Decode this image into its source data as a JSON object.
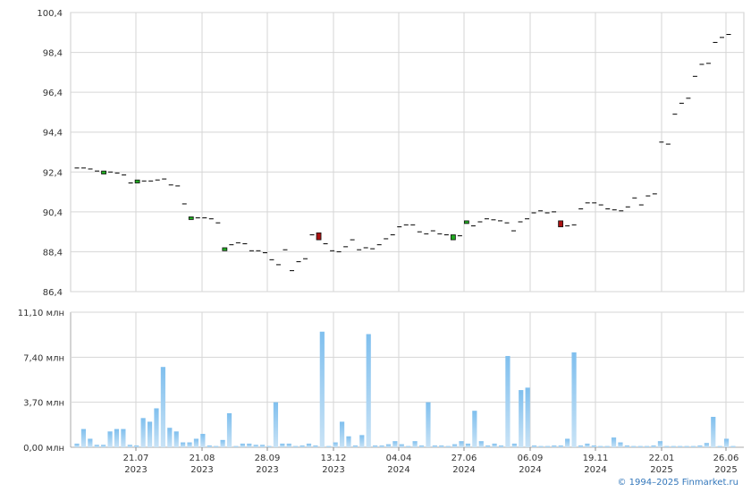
{
  "chart_data": [
    {
      "type": "candlestick",
      "title": "",
      "ylim": [
        86.4,
        100.4
      ],
      "y_ticks": [
        "100,4",
        "98,4",
        "96,4",
        "94,4",
        "92,4",
        "90,4",
        "88,4",
        "86,4"
      ],
      "x_ticks": [
        {
          "top": "21.07",
          "bottom": "2023"
        },
        {
          "top": "21.08",
          "bottom": "2023"
        },
        {
          "top": "28.09",
          "bottom": "2023"
        },
        {
          "top": "13.12",
          "bottom": "2023"
        },
        {
          "top": "04.04",
          "bottom": "2024"
        },
        {
          "top": "27.06",
          "bottom": "2024"
        },
        {
          "top": "06.09",
          "bottom": "2024"
        },
        {
          "top": "19.11",
          "bottom": "2024"
        },
        {
          "top": "22.01",
          "bottom": "2025"
        },
        {
          "top": "26.06",
          "bottom": "2025"
        }
      ],
      "grid": true,
      "colors": {
        "up": "#22aa22",
        "down": "#aa1111",
        "neutral": "#000000"
      },
      "candles": [
        {
          "open": 92.6,
          "close": 92.6
        },
        {
          "open": 92.6,
          "close": 92.6
        },
        {
          "open": 92.55,
          "close": 92.55
        },
        {
          "open": 92.45,
          "close": 92.45
        },
        {
          "open": 92.3,
          "close": 92.45
        },
        {
          "open": 92.4,
          "close": 92.4
        },
        {
          "open": 92.35,
          "close": 92.35
        },
        {
          "open": 92.25,
          "close": 92.25
        },
        {
          "open": 91.85,
          "close": 91.85
        },
        {
          "open": 91.85,
          "close": 92.0
        },
        {
          "open": 91.95,
          "close": 91.95
        },
        {
          "open": 91.95,
          "close": 91.95
        },
        {
          "open": 92.0,
          "close": 92.0
        },
        {
          "open": 92.05,
          "close": 92.05
        },
        {
          "open": 91.75,
          "close": 91.75
        },
        {
          "open": 91.75,
          "close": 91.7
        },
        {
          "open": 90.8,
          "close": 90.8
        },
        {
          "open": 90.05,
          "close": 90.15
        },
        {
          "open": 90.1,
          "close": 90.1
        },
        {
          "open": 90.1,
          "close": 90.1
        },
        {
          "open": 90.05,
          "close": 90.05
        },
        {
          "open": 89.85,
          "close": 89.85
        },
        {
          "open": 88.45,
          "close": 88.6
        },
        {
          "open": 88.75,
          "close": 88.75
        },
        {
          "open": 88.85,
          "close": 88.85
        },
        {
          "open": 88.8,
          "close": 88.8
        },
        {
          "open": 88.45,
          "close": 88.45
        },
        {
          "open": 88.45,
          "close": 88.45
        },
        {
          "open": 88.35,
          "close": 88.35
        },
        {
          "open": 88.0,
          "close": 88.0
        },
        {
          "open": 87.75,
          "close": 87.75
        },
        {
          "open": 88.5,
          "close": 88.5
        },
        {
          "open": 87.45,
          "close": 87.45
        },
        {
          "open": 87.9,
          "close": 87.9
        },
        {
          "open": 88.05,
          "close": 88.05
        },
        {
          "open": 89.25,
          "close": 89.25
        },
        {
          "open": 89.35,
          "close": 89.0
        },
        {
          "open": 88.8,
          "close": 88.8
        },
        {
          "open": 88.45,
          "close": 88.45
        },
        {
          "open": 88.4,
          "close": 88.4
        },
        {
          "open": 88.65,
          "close": 88.65
        },
        {
          "open": 89.0,
          "close": 89.0
        },
        {
          "open": 88.5,
          "close": 88.5
        },
        {
          "open": 88.6,
          "close": 88.6
        },
        {
          "open": 88.55,
          "close": 88.55
        },
        {
          "open": 88.75,
          "close": 88.75
        },
        {
          "open": 89.05,
          "close": 89.05
        },
        {
          "open": 89.25,
          "close": 89.25
        },
        {
          "open": 89.65,
          "close": 89.65
        },
        {
          "open": 89.75,
          "close": 89.75
        },
        {
          "open": 89.75,
          "close": 89.75
        },
        {
          "open": 89.4,
          "close": 89.4
        },
        {
          "open": 89.3,
          "close": 89.3
        },
        {
          "open": 89.45,
          "close": 89.45
        },
        {
          "open": 89.3,
          "close": 89.3
        },
        {
          "open": 89.25,
          "close": 89.25
        },
        {
          "open": 89.0,
          "close": 89.25
        },
        {
          "open": 89.2,
          "close": 89.2
        },
        {
          "open": 89.85,
          "close": 89.95
        },
        {
          "open": 89.7,
          "close": 89.7
        },
        {
          "open": 89.9,
          "close": 89.9
        },
        {
          "open": 90.05,
          "close": 90.05
        },
        {
          "open": 90.0,
          "close": 90.0
        },
        {
          "open": 89.95,
          "close": 89.95
        },
        {
          "open": 89.85,
          "close": 89.85
        },
        {
          "open": 89.45,
          "close": 89.45
        },
        {
          "open": 89.9,
          "close": 89.9
        },
        {
          "open": 90.05,
          "close": 90.05
        },
        {
          "open": 90.35,
          "close": 90.35
        },
        {
          "open": 90.45,
          "close": 90.45
        },
        {
          "open": 90.35,
          "close": 90.35
        },
        {
          "open": 90.4,
          "close": 90.4
        },
        {
          "open": 89.95,
          "close": 89.65
        },
        {
          "open": 89.7,
          "close": 89.7
        },
        {
          "open": 89.75,
          "close": 89.75
        },
        {
          "open": 90.55,
          "close": 90.55
        },
        {
          "open": 90.85,
          "close": 90.85
        },
        {
          "open": 90.85,
          "close": 90.85
        },
        {
          "open": 90.75,
          "close": 90.75
        },
        {
          "open": 90.55,
          "close": 90.55
        },
        {
          "open": 90.5,
          "close": 90.5
        },
        {
          "open": 90.45,
          "close": 90.45
        },
        {
          "open": 90.65,
          "close": 90.65
        },
        {
          "open": 91.1,
          "close": 91.1
        },
        {
          "open": 90.75,
          "close": 90.75
        },
        {
          "open": 91.2,
          "close": 91.2
        },
        {
          "open": 91.3,
          "close": 91.3
        },
        {
          "open": 93.9,
          "close": 93.9
        },
        {
          "open": 93.8,
          "close": 93.8
        },
        {
          "open": 95.3,
          "close": 95.3
        },
        {
          "open": 95.85,
          "close": 95.85
        },
        {
          "open": 96.1,
          "close": 96.1
        },
        {
          "open": 97.2,
          "close": 97.2
        },
        {
          "open": 97.8,
          "close": 97.8
        },
        {
          "open": 97.85,
          "close": 97.85
        },
        {
          "open": 98.9,
          "close": 98.9
        },
        {
          "open": 99.15,
          "close": 99.15
        },
        {
          "open": 99.3,
          "close": 99.3
        }
      ]
    },
    {
      "type": "bar",
      "title": "",
      "ylim": [
        0,
        11.1
      ],
      "y_ticks": [
        "11,10 млн",
        "7,40 млн",
        "3,70 млн",
        "0,00 млн"
      ],
      "unit": "млн",
      "color": "#7fbfee",
      "values": [
        0.3,
        1.5,
        0.7,
        0.2,
        0.2,
        1.3,
        1.5,
        1.5,
        0.2,
        0.15,
        2.4,
        2.1,
        3.2,
        6.6,
        1.6,
        1.3,
        0.4,
        0.4,
        0.7,
        1.1,
        0.15,
        0.1,
        0.6,
        2.8,
        0.1,
        0.3,
        0.3,
        0.2,
        0.2,
        0.1,
        3.7,
        0.3,
        0.3,
        0.1,
        0.15,
        0.3,
        0.15,
        9.5,
        0.1,
        0.4,
        2.1,
        0.9,
        0.15,
        1.0,
        9.3,
        0.15,
        0.15,
        0.25,
        0.5,
        0.25,
        0.1,
        0.5,
        0.15,
        3.7,
        0.15,
        0.15,
        0.1,
        0.25,
        0.5,
        0.3,
        3.0,
        0.5,
        0.15,
        0.3,
        0.15,
        7.5,
        0.3,
        4.7,
        4.9,
        0.15,
        0.1,
        0.1,
        0.15,
        0.15,
        0.7,
        7.8,
        0.15,
        0.3,
        0.15,
        0.1,
        0.1,
        0.8,
        0.4,
        0.15,
        0.1,
        0.1,
        0.1,
        0.15,
        0.5,
        0.1,
        0.1,
        0.1,
        0.1,
        0.1,
        0.15,
        0.35,
        2.5,
        0.1,
        0.7,
        0.1
      ]
    }
  ],
  "footer": {
    "credit": "© 1994–2025 Finmarket.ru"
  }
}
